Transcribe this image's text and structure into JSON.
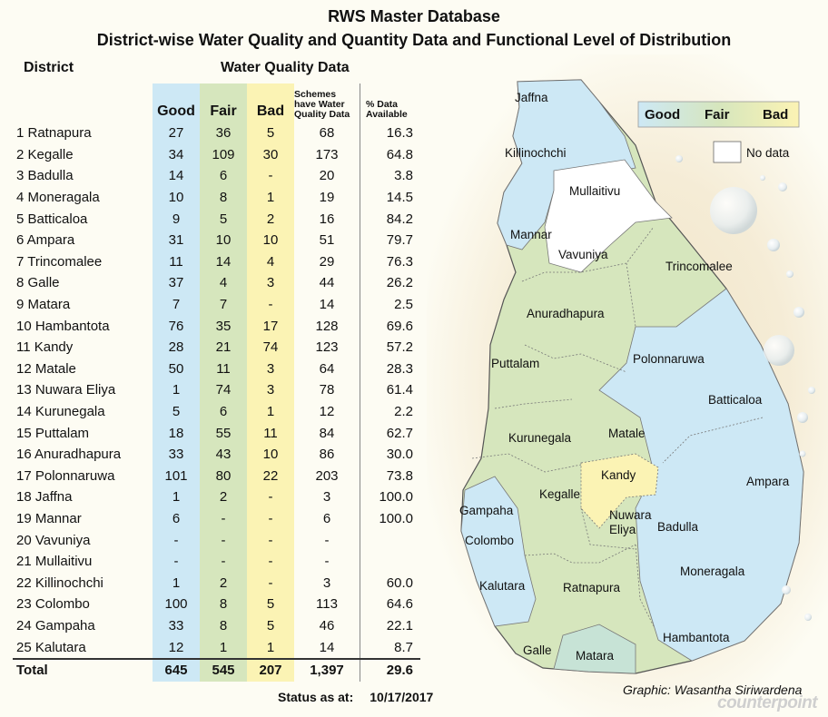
{
  "title": "RWS Master Database",
  "subtitle": "District-wise Water Quality and Quantity Data and Functional Level of Distribution",
  "headers": {
    "district": "District",
    "wq": "Water Quality Data",
    "good": "Good",
    "fair": "Fair",
    "bad": "Bad",
    "schemes": "Schemes have Water Quality Data",
    "pct": "% Data Available"
  },
  "chart_data": {
    "type": "table",
    "columns": [
      "District",
      "Good",
      "Fair",
      "Bad",
      "Schemes have Water Quality Data",
      "% Data Available"
    ],
    "rows": [
      [
        "1  Ratnapura",
        "27",
        "36",
        "5",
        "68",
        "16.3"
      ],
      [
        "2  Kegalle",
        "34",
        "109",
        "30",
        "173",
        "64.8"
      ],
      [
        "3 Badulla",
        "14",
        "6",
        "-",
        "20",
        "3.8"
      ],
      [
        "4 Moneragala",
        "10",
        "8",
        "1",
        "19",
        "14.5"
      ],
      [
        "5 Batticaloa",
        "9",
        "5",
        "2",
        "16",
        "84.2"
      ],
      [
        "6 Ampara",
        "31",
        "10",
        "10",
        "51",
        "79.7"
      ],
      [
        "7 Trincomalee",
        "11",
        "14",
        "4",
        "29",
        "76.3"
      ],
      [
        "8 Galle",
        "37",
        "4",
        "3",
        "44",
        "26.2"
      ],
      [
        "9 Matara",
        "7",
        "7",
        "-",
        "14",
        "2.5"
      ],
      [
        "10 Hambantota",
        "76",
        "35",
        "17",
        "128",
        "69.6"
      ],
      [
        "11 Kandy",
        "28",
        "21",
        "74",
        "123",
        "57.2"
      ],
      [
        "12 Matale",
        "50",
        "11",
        "3",
        "64",
        "28.3"
      ],
      [
        "13 Nuwara Eliya",
        "1",
        "74",
        "3",
        "78",
        "61.4"
      ],
      [
        "14 Kurunegala",
        "5",
        "6",
        "1",
        "12",
        "2.2"
      ],
      [
        "15 Puttalam",
        "18",
        "55",
        "11",
        "84",
        "62.7"
      ],
      [
        "16 Anuradhapura",
        "33",
        "43",
        "10",
        "86",
        "30.0"
      ],
      [
        "17 Polonnaruwa",
        "101",
        "80",
        "22",
        "203",
        "73.8"
      ],
      [
        "18 Jaffna",
        "1",
        "2",
        "-",
        "3",
        "100.0"
      ],
      [
        "19 Mannar",
        "6",
        "-",
        "-",
        "6",
        "100.0"
      ],
      [
        "20 Vavuniya",
        "-",
        "-",
        "-",
        "-",
        ""
      ],
      [
        "21 Mullaitivu",
        "-",
        "-",
        "-",
        "-",
        ""
      ],
      [
        "22 Killinochchi",
        "1",
        "2",
        "-",
        "3",
        "60.0"
      ],
      [
        "23 Colombo",
        "100",
        "8",
        "5",
        "113",
        "64.6"
      ],
      [
        "24 Gampaha",
        "33",
        "8",
        "5",
        "46",
        "22.1"
      ],
      [
        "25 Kalutara",
        "12",
        "1",
        "1",
        "14",
        "8.7"
      ]
    ],
    "total": [
      "Total",
      "645",
      "545",
      "207",
      "1,397",
      "29.6"
    ]
  },
  "map": {
    "legend": {
      "good": "Good",
      "fair": "Fair",
      "bad": "Bad",
      "nodata": "No data"
    },
    "colors": {
      "good": "#cde8f5",
      "fair": "#d6e6bd",
      "bad": "#fbf3b4",
      "nodata": "#ffffff",
      "lightgreen": "#c7e3d6"
    },
    "labels": {
      "jaffna": "Jaffna",
      "killinochchi": "Killinochchi",
      "mullaitivu": "Mullaitivu",
      "mannar": "Mannar",
      "vavuniya": "Vavuniya",
      "trincomalee": "Trincomalee",
      "anuradhapura": "Anuradhapura",
      "puttalam": "Puttalam",
      "polonnaruwa": "Polonnaruwa",
      "batticaloa": "Batticaloa",
      "kurunegala": "Kurunegala",
      "matale": "Matale",
      "kandy": "Kandy",
      "ampara": "Ampara",
      "gampaha": "Gampaha",
      "kegalle": "Kegalle",
      "nuwara": "Nuwara",
      "eliya": "Eliya",
      "badulla": "Badulla",
      "colombo": "Colombo",
      "moneragala": "Moneragala",
      "kalutara": "Kalutara",
      "ratnapura": "Ratnapura",
      "hambantota": "Hambantota",
      "galle": "Galle",
      "matara": "Matara"
    }
  },
  "status_label": "Status as at:",
  "status_date": "10/17/2017",
  "credit": "Graphic: Wasantha Siriwardena",
  "watermark": "counterpoint"
}
